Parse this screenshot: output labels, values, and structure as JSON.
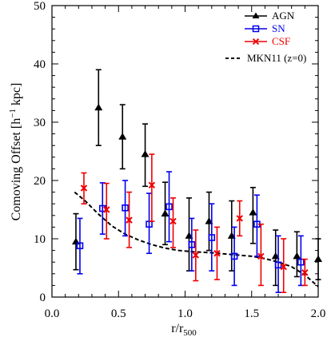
{
  "chart_data": {
    "type": "scatter",
    "title": "",
    "xlabel": {
      "main": "r/r",
      "sub": "500"
    },
    "ylabel": {
      "pre": "Comoving Offset [h",
      "sup": "−1",
      "post": " kpc]"
    },
    "xlim": [
      0.0,
      2.0
    ],
    "ylim": [
      0,
      50
    ],
    "xticks": [
      "0.0",
      "0.5",
      "1.0",
      "1.5",
      "2.0"
    ],
    "yticks": [
      "0",
      "10",
      "20",
      "30",
      "40",
      "50"
    ],
    "grid": false,
    "legend_position": "top-right",
    "series": [
      {
        "name": "AGN",
        "color": "#000000",
        "marker": "triangle",
        "points": [
          {
            "x": 0.18,
            "y": 9.5,
            "lo": 4.7,
            "hi": 14.3
          },
          {
            "x": 0.35,
            "y": 32.5,
            "lo": 26.0,
            "hi": 39.0
          },
          {
            "x": 0.53,
            "y": 27.5,
            "lo": 22.0,
            "hi": 33.0
          },
          {
            "x": 0.7,
            "y": 24.5,
            "lo": 19.0,
            "hi": 29.7
          },
          {
            "x": 0.85,
            "y": 14.3,
            "lo": 9.0,
            "hi": 19.7
          },
          {
            "x": 1.03,
            "y": 10.5,
            "lo": 4.5,
            "hi": 17.0
          },
          {
            "x": 1.18,
            "y": 13.0,
            "lo": 8.0,
            "hi": 18.0
          },
          {
            "x": 1.35,
            "y": 10.5,
            "lo": 4.5,
            "hi": 16.5
          },
          {
            "x": 1.51,
            "y": 14.5,
            "lo": 9.2,
            "hi": 18.8
          },
          {
            "x": 1.68,
            "y": 7.0,
            "lo": 2.0,
            "hi": 11.5
          },
          {
            "x": 1.84,
            "y": 7.0,
            "lo": 3.5,
            "hi": 11.2
          },
          {
            "x": 2.0,
            "y": 6.5,
            "lo": 3.0,
            "hi": 10.0
          }
        ]
      },
      {
        "name": "SN",
        "color": "#0000ee",
        "marker": "square",
        "points": [
          {
            "x": 0.21,
            "y": 8.8,
            "lo": 4.0,
            "hi": 13.5
          },
          {
            "x": 0.38,
            "y": 15.2,
            "lo": 10.8,
            "hi": 19.6
          },
          {
            "x": 0.55,
            "y": 15.3,
            "lo": 10.5,
            "hi": 20.0
          },
          {
            "x": 0.73,
            "y": 12.5,
            "lo": 7.5,
            "hi": 17.8
          },
          {
            "x": 0.88,
            "y": 15.5,
            "lo": 9.5,
            "hi": 21.5
          },
          {
            "x": 1.05,
            "y": 9.0,
            "lo": 4.5,
            "hi": 13.5
          },
          {
            "x": 1.2,
            "y": 10.2,
            "lo": 4.5,
            "hi": 16.0
          },
          {
            "x": 1.37,
            "y": 7.0,
            "lo": 2.0,
            "hi": 12.0
          },
          {
            "x": 1.54,
            "y": 12.5,
            "lo": 7.0,
            "hi": 17.5
          },
          {
            "x": 1.7,
            "y": 5.5,
            "lo": 0.8,
            "hi": 10.5
          },
          {
            "x": 1.87,
            "y": 6.0,
            "lo": 2.0,
            "hi": 10.5
          }
        ]
      },
      {
        "name": "CSF",
        "color": "#ee0000",
        "marker": "cross",
        "points": [
          {
            "x": 0.24,
            "y": 18.7,
            "lo": 16.0,
            "hi": 21.3
          },
          {
            "x": 0.41,
            "y": 15.0,
            "lo": 10.0,
            "hi": 19.5
          },
          {
            "x": 0.58,
            "y": 13.2,
            "lo": 8.5,
            "hi": 18.0
          },
          {
            "x": 0.75,
            "y": 19.2,
            "lo": 13.0,
            "hi": 24.5
          },
          {
            "x": 0.91,
            "y": 13.0,
            "lo": 8.5,
            "hi": 17.0
          },
          {
            "x": 1.08,
            "y": 7.2,
            "lo": 2.8,
            "hi": 11.5
          },
          {
            "x": 1.24,
            "y": 7.5,
            "lo": 3.0,
            "hi": 12.0
          },
          {
            "x": 1.41,
            "y": 13.5,
            "lo": 10.5,
            "hi": 16.5
          },
          {
            "x": 1.57,
            "y": 7.0,
            "lo": 2.0,
            "hi": 12.5
          },
          {
            "x": 1.74,
            "y": 5.2,
            "lo": 0.8,
            "hi": 10.0
          },
          {
            "x": 1.9,
            "y": 4.2,
            "lo": 2.0,
            "hi": 6.5
          }
        ]
      }
    ],
    "model_curve": {
      "name": "MKN11 (z=0)",
      "color": "#000000",
      "style": "dashed",
      "points": [
        {
          "x": 0.17,
          "y": 18.0
        },
        {
          "x": 0.25,
          "y": 16.5
        },
        {
          "x": 0.35,
          "y": 14.2
        },
        {
          "x": 0.45,
          "y": 12.2
        },
        {
          "x": 0.55,
          "y": 10.8
        },
        {
          "x": 0.65,
          "y": 9.8
        },
        {
          "x": 0.75,
          "y": 9.0
        },
        {
          "x": 0.85,
          "y": 8.4
        },
        {
          "x": 0.95,
          "y": 8.0
        },
        {
          "x": 1.05,
          "y": 7.8
        },
        {
          "x": 1.2,
          "y": 7.6
        },
        {
          "x": 1.35,
          "y": 7.3
        },
        {
          "x": 1.5,
          "y": 7.0
        },
        {
          "x": 1.6,
          "y": 6.6
        },
        {
          "x": 1.7,
          "y": 6.0
        },
        {
          "x": 1.8,
          "y": 5.2
        },
        {
          "x": 1.9,
          "y": 3.8
        },
        {
          "x": 2.0,
          "y": 1.8
        }
      ]
    }
  }
}
